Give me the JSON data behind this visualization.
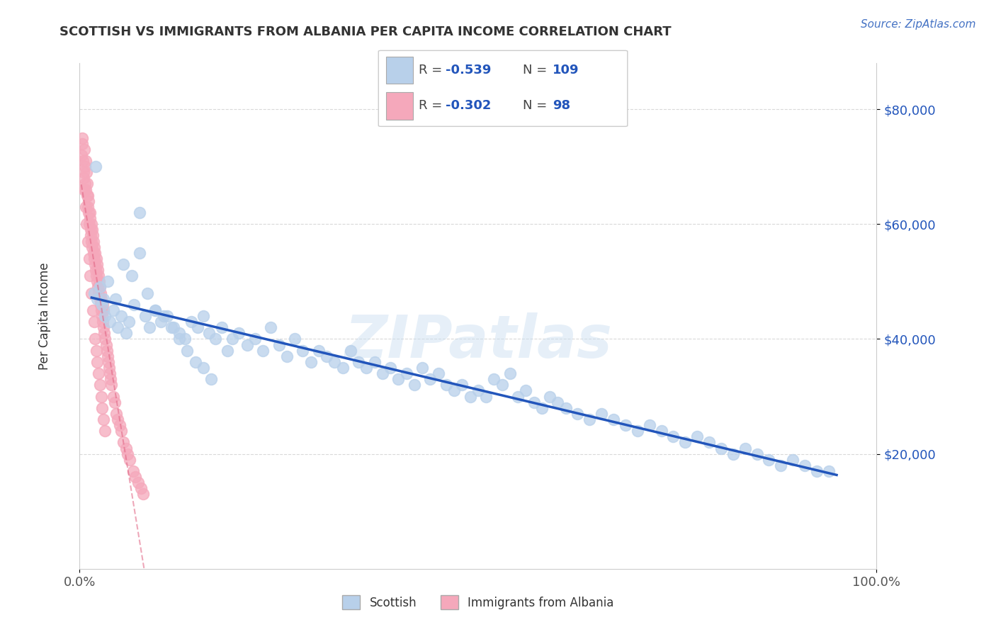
{
  "title": "SCOTTISH VS IMMIGRANTS FROM ALBANIA PER CAPITA INCOME CORRELATION CHART",
  "source": "Source: ZipAtlas.com",
  "ylabel": "Per Capita Income",
  "watermark": "ZIPatlas",
  "legend": {
    "scottish_R": "-0.539",
    "scottish_N": "109",
    "albania_R": "-0.302",
    "albania_N": "98"
  },
  "scottish_color": "#b8d0ea",
  "albania_color": "#f5a8bb",
  "regression_blue": "#2255bb",
  "regression_pink": "#e06080",
  "yaxis_labels": [
    "$80,000",
    "$60,000",
    "$40,000",
    "$20,000"
  ],
  "yaxis_values": [
    80000,
    60000,
    40000,
    20000
  ],
  "ylim": [
    0,
    88000
  ],
  "xlim": [
    0,
    100
  ],
  "scottish_x": [
    1.8,
    2.2,
    2.5,
    2.8,
    3.2,
    3.8,
    4.2,
    4.8,
    5.2,
    5.8,
    6.2,
    6.8,
    7.5,
    8.2,
    8.8,
    9.5,
    10.2,
    11.0,
    11.8,
    12.5,
    13.2,
    14.0,
    14.8,
    15.5,
    16.2,
    17.0,
    17.8,
    18.5,
    19.2,
    20.0,
    21.0,
    22.0,
    23.0,
    24.0,
    25.0,
    26.0,
    27.0,
    28.0,
    29.0,
    30.0,
    31.0,
    32.0,
    33.0,
    34.0,
    35.0,
    36.0,
    37.0,
    38.0,
    39.0,
    40.0,
    41.0,
    42.0,
    43.0,
    44.0,
    45.0,
    46.0,
    47.0,
    48.0,
    49.0,
    50.0,
    51.0,
    52.0,
    53.0,
    54.0,
    55.0,
    56.0,
    57.0,
    58.0,
    59.0,
    60.0,
    61.0,
    62.5,
    64.0,
    65.5,
    67.0,
    68.5,
    70.0,
    71.5,
    73.0,
    74.5,
    76.0,
    77.5,
    79.0,
    80.5,
    82.0,
    83.5,
    85.0,
    86.5,
    88.0,
    89.5,
    91.0,
    92.5,
    94.0,
    3.5,
    4.5,
    5.5,
    6.5,
    7.5,
    8.5,
    9.5,
    10.5,
    11.5,
    12.5,
    13.5,
    14.5,
    15.5,
    16.5,
    2.0,
    3.0
  ],
  "scottish_y": [
    48000,
    47000,
    49000,
    46000,
    44000,
    43000,
    45000,
    42000,
    44000,
    41000,
    43000,
    46000,
    55000,
    44000,
    42000,
    45000,
    43000,
    44000,
    42000,
    41000,
    40000,
    43000,
    42000,
    44000,
    41000,
    40000,
    42000,
    38000,
    40000,
    41000,
    39000,
    40000,
    38000,
    42000,
    39000,
    37000,
    40000,
    38000,
    36000,
    38000,
    37000,
    36000,
    35000,
    38000,
    36000,
    35000,
    36000,
    34000,
    35000,
    33000,
    34000,
    32000,
    35000,
    33000,
    34000,
    32000,
    31000,
    32000,
    30000,
    31000,
    30000,
    33000,
    32000,
    34000,
    30000,
    31000,
    29000,
    28000,
    30000,
    29000,
    28000,
    27000,
    26000,
    27000,
    26000,
    25000,
    24000,
    25000,
    24000,
    23000,
    22000,
    23000,
    22000,
    21000,
    20000,
    21000,
    20000,
    19000,
    18000,
    19000,
    18000,
    17000,
    17000,
    50000,
    47000,
    53000,
    51000,
    62000,
    48000,
    45000,
    44000,
    42000,
    40000,
    38000,
    36000,
    35000,
    33000,
    70000,
    47000
  ],
  "albania_x": [
    0.2,
    0.35,
    0.4,
    0.5,
    0.6,
    0.65,
    0.7,
    0.75,
    0.8,
    0.85,
    0.9,
    0.95,
    1.0,
    1.05,
    1.1,
    1.15,
    1.2,
    1.25,
    1.3,
    1.35,
    1.4,
    1.45,
    1.5,
    1.55,
    1.6,
    1.65,
    1.7,
    1.75,
    1.8,
    1.85,
    1.9,
    1.95,
    2.0,
    2.05,
    2.1,
    2.15,
    2.2,
    2.25,
    2.3,
    2.35,
    2.4,
    2.45,
    2.5,
    2.55,
    2.6,
    2.65,
    2.7,
    2.75,
    2.8,
    2.85,
    2.9,
    2.95,
    3.0,
    3.1,
    3.2,
    3.3,
    3.4,
    3.5,
    3.6,
    3.7,
    3.8,
    3.9,
    4.0,
    4.2,
    4.4,
    4.6,
    4.8,
    5.0,
    5.2,
    5.5,
    5.8,
    6.0,
    6.3,
    6.7,
    7.0,
    7.3,
    7.7,
    8.0,
    0.3,
    0.45,
    0.55,
    0.72,
    0.88,
    1.02,
    1.18,
    1.32,
    1.48,
    1.62,
    1.78,
    1.92,
    2.08,
    2.22,
    2.38,
    2.52,
    2.68,
    2.82,
    2.98,
    3.15
  ],
  "albania_y": [
    72000,
    75000,
    71000,
    68000,
    73000,
    70000,
    67000,
    71000,
    66000,
    69000,
    65000,
    67000,
    63000,
    65000,
    62000,
    64000,
    60000,
    62000,
    61000,
    59000,
    58000,
    60000,
    57000,
    59000,
    56000,
    58000,
    55000,
    57000,
    54000,
    56000,
    53000,
    55000,
    52000,
    54000,
    51000,
    53000,
    50000,
    52000,
    49000,
    51000,
    48000,
    50000,
    47000,
    49000,
    46000,
    48000,
    45000,
    47000,
    44000,
    46000,
    43000,
    45000,
    42000,
    41000,
    40000,
    39000,
    38000,
    37000,
    36000,
    35000,
    34000,
    33000,
    32000,
    30000,
    29000,
    27000,
    26000,
    25000,
    24000,
    22000,
    21000,
    20000,
    19000,
    17000,
    16000,
    15000,
    14000,
    13000,
    74000,
    69000,
    66000,
    63000,
    60000,
    57000,
    54000,
    51000,
    48000,
    45000,
    43000,
    40000,
    38000,
    36000,
    34000,
    32000,
    30000,
    28000,
    26000,
    24000
  ]
}
